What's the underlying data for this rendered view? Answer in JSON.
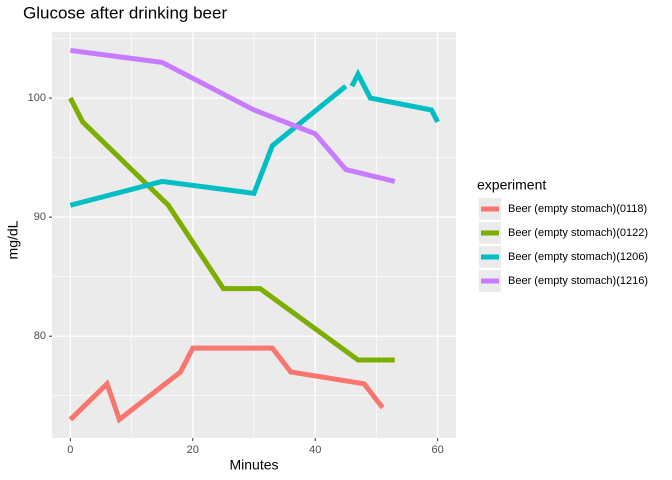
{
  "chart_data": {
    "type": "line",
    "title": "Glucose after drinking beer",
    "x_label": "Minutes",
    "y_label": "mg/dL",
    "legend_title": "experiment",
    "legend_position": "right",
    "grid": true,
    "xlim": [
      -3,
      63
    ],
    "xticks": [
      0,
      20,
      40,
      60
    ],
    "ylim": [
      71.45,
      105.55
    ],
    "yticks": [
      80,
      90,
      100
    ],
    "series": [
      {
        "name": "Beer (empty stomach)(0118)",
        "color": "#F8766D",
        "x": [
          0,
          6,
          8,
          18,
          20,
          33,
          36,
          48,
          51
        ],
        "values": [
          73,
          76,
          73,
          77,
          79,
          79,
          77,
          76,
          74
        ]
      },
      {
        "name": "Beer (empty stomach)(0122)",
        "color": "#7CAE00",
        "x": [
          0,
          2,
          16,
          25,
          31,
          47,
          53
        ],
        "values": [
          100,
          98,
          91,
          84,
          84,
          78,
          78
        ]
      },
      {
        "name": "Beer (empty stomach)(1206)",
        "color": "#00BFC4",
        "x": [
          0,
          15,
          30,
          33,
          45,
          null,
          46,
          47,
          49,
          59,
          60
        ],
        "values": [
          91,
          93,
          92,
          96,
          101,
          null,
          101,
          102,
          100,
          99,
          98
        ]
      },
      {
        "name": "Beer (empty stomach)(1216)",
        "color": "#C77CFF",
        "x": [
          0,
          15,
          30,
          40,
          45,
          53
        ],
        "values": [
          104,
          103,
          99,
          97,
          94,
          93
        ]
      }
    ]
  }
}
